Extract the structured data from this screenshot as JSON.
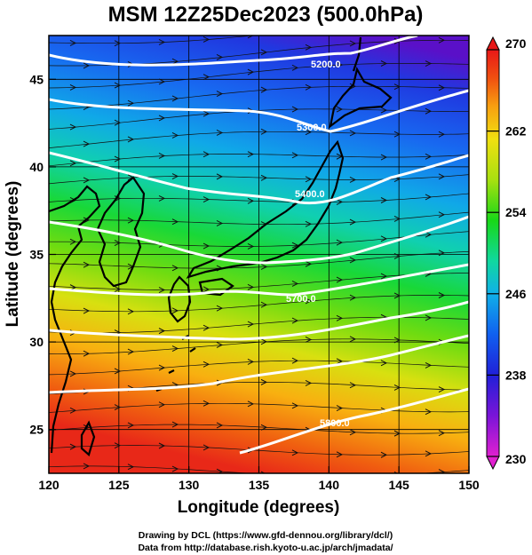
{
  "title": "MSM 12Z25Dec2023 (500.0hPa)",
  "x_axis": {
    "label": "Longitude (degrees)",
    "range": [
      120,
      150
    ],
    "ticks": [
      "120",
      "125",
      "130",
      "135",
      "140",
      "145",
      "150"
    ]
  },
  "y_axis": {
    "label": "Latitude  (degrees)",
    "range": [
      22.5,
      47.5
    ],
    "ticks": [
      "25",
      "30",
      "35",
      "40",
      "45"
    ]
  },
  "colorbar": {
    "range": [
      230,
      270
    ],
    "ticks": [
      "230",
      "238",
      "246",
      "254",
      "262",
      "270"
    ],
    "colors": [
      "#e020d0",
      "#7a14d8",
      "#2020d8",
      "#1060f0",
      "#10b0e8",
      "#10d8a0",
      "#18d818",
      "#a8e010",
      "#f0e010",
      "#f8a010",
      "#f05010",
      "#e81818"
    ]
  },
  "contour_labels": [
    "5200.0",
    "5300.0",
    "5400.0",
    "5700.0",
    "5800.0"
  ],
  "credits": {
    "line1": "Drawing by DCL (https://www.gfd-dennou.org/library/dcl/)",
    "line2": "Data from http://database.rish.kyoto-u.ac.jp/arch/jmadata/"
  }
}
